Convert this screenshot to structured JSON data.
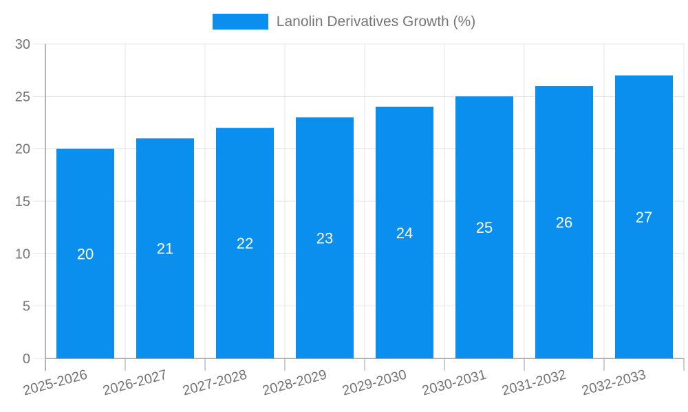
{
  "legend": {
    "label": "Lanolin Derivatives Growth (%)",
    "swatch_color": "#0a8fef"
  },
  "colors": {
    "bar": "#0a8fef",
    "axis_text": "#757575",
    "grid_line": "#e6e6e6",
    "axis_line": "#b3b3b3",
    "tick_line": "#cccccc",
    "data_label": "#ffffff",
    "background": "#ffffff"
  },
  "chart_data": {
    "type": "bar",
    "title": "",
    "xlabel": "",
    "ylabel": "",
    "categories": [
      "2025-2026",
      "2026-2027",
      "2027-2028",
      "2028-2029",
      "2029-2030",
      "2030-2031",
      "2031-2032",
      "2032-2033"
    ],
    "series": [
      {
        "name": "Lanolin Derivatives Growth (%)",
        "values": [
          20,
          21,
          22,
          23,
          24,
          25,
          26,
          27
        ],
        "color": "#0a8fef"
      }
    ],
    "data_labels": [
      "20",
      "21",
      "22",
      "23",
      "24",
      "25",
      "26",
      "27"
    ],
    "ylim": [
      0,
      30
    ],
    "yticks": [
      0,
      5,
      10,
      15,
      20,
      25,
      30
    ],
    "grid": {
      "horizontal": true,
      "vertical": true
    },
    "legend_position": "top-center",
    "x_label_rotation_deg": -15
  }
}
